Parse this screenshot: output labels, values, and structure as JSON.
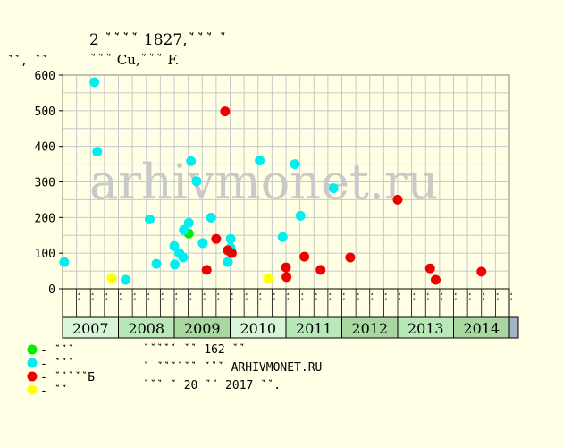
{
  "header": {
    "title_line1": "2 ꙿꙿꙿꙿ 1827,ꙿꙿꙿ ꙿ",
    "title_line2": "ꙿꙿꙿ Cu,ꙿꙿꙿ F."
  },
  "watermark": "arhivmonet.ru",
  "legend": [
    {
      "label": "- ꙿꙿꙿ",
      "color": "#00ee00"
    },
    {
      "label": "- ꙿꙿꙿ",
      "color": "#00eeee"
    },
    {
      "label": "- ꙿꙿꙿꙿꙿБ",
      "color": "#ee0000"
    },
    {
      "label": "- ꙿꙿ",
      "color": "#ffff00"
    }
  ],
  "notes": [
    "ꙿꙿꙿꙿꙿ ꙿꙿ 162 ꙿꙿ",
    "ꙿ ꙿꙿꙿꙿꙿꙿ ꙿꙿꙿ ARHIVMONET.RU",
    "ꙿꙿꙿ ꙿ 20 ꙿꙿ 2017 ꙿꙿ."
  ],
  "colors": {
    "background": "#ffffe6",
    "grid": "#c8c8c8",
    "year_bands": [
      "#d8f5d8",
      "#b8e8b8",
      "#a8d8a0",
      "#d8f5d8",
      "#b8e8b8",
      "#a8d8a0",
      "#b8e8b8",
      "#a8d8a0"
    ],
    "end_cell": "#a0b4c8"
  },
  "chart_data": {
    "type": "scatter",
    "ylabel": "ꙿꙿ, ꙿꙿ",
    "ylim": [
      0,
      600
    ],
    "yticks": [
      0,
      100,
      200,
      300,
      400,
      500,
      600
    ],
    "xlim": [
      2007.0,
      2015.0
    ],
    "grid": true,
    "legend_position": "bottom-left",
    "years": [
      "2007",
      "2008",
      "2009",
      "2010",
      "2011",
      "2012",
      "2013",
      "2014"
    ],
    "quarter_labels": [
      "ꙿꙿ",
      "ꙿꙿ",
      "ꙿꙿ",
      "ꙿꙿ",
      "ꙿꙿ",
      "ꙿꙿ",
      "ꙿꙿ",
      "ꙿꙿ",
      "ꙿꙿ",
      "ꙿꙿ",
      "ꙿꙿ",
      "ꙿꙿ",
      "ꙿꙿ",
      "ꙿꙿ",
      "ꙿꙿ",
      "ꙿꙿ",
      "ꙿꙿ",
      "ꙿꙿ",
      "ꙿꙿ",
      "ꙿꙿ",
      "ꙿꙿ",
      "ꙿꙿ",
      "ꙿꙿ",
      "ꙿꙿ",
      "ꙿꙿ",
      "ꙿꙿ",
      "ꙿꙿ",
      "ꙿꙿ",
      "ꙿꙿ",
      "ꙿꙿ",
      "ꙿꙿ",
      "ꙿꙿ"
    ],
    "series": [
      {
        "color": "#00ee00",
        "points": [
          {
            "x": 2009.26,
            "y": 155
          }
        ]
      },
      {
        "color": "#00eeee",
        "points": [
          {
            "x": 2007.03,
            "y": 75
          },
          {
            "x": 2007.57,
            "y": 580
          },
          {
            "x": 2007.62,
            "y": 385
          },
          {
            "x": 2008.13,
            "y": 25
          },
          {
            "x": 2008.56,
            "y": 195
          },
          {
            "x": 2008.68,
            "y": 70
          },
          {
            "x": 2009.0,
            "y": 120
          },
          {
            "x": 2009.01,
            "y": 68
          },
          {
            "x": 2009.09,
            "y": 100
          },
          {
            "x": 2009.16,
            "y": 88
          },
          {
            "x": 2009.17,
            "y": 165
          },
          {
            "x": 2009.26,
            "y": 185
          },
          {
            "x": 2009.3,
            "y": 358
          },
          {
            "x": 2009.4,
            "y": 302
          },
          {
            "x": 2009.51,
            "y": 128
          },
          {
            "x": 2009.66,
            "y": 200
          },
          {
            "x": 2009.96,
            "y": 75
          },
          {
            "x": 2010.01,
            "y": 140
          },
          {
            "x": 2010.01,
            "y": 115
          },
          {
            "x": 2010.53,
            "y": 360
          },
          {
            "x": 2010.94,
            "y": 145
          },
          {
            "x": 2011.16,
            "y": 350
          },
          {
            "x": 2011.26,
            "y": 205
          },
          {
            "x": 2011.85,
            "y": 282
          }
        ]
      },
      {
        "color": "#ee0000",
        "points": [
          {
            "x": 2009.58,
            "y": 53
          },
          {
            "x": 2009.75,
            "y": 140
          },
          {
            "x": 2009.91,
            "y": 498
          },
          {
            "x": 2009.96,
            "y": 108
          },
          {
            "x": 2010.03,
            "y": 100
          },
          {
            "x": 2011.0,
            "y": 60
          },
          {
            "x": 2011.01,
            "y": 33
          },
          {
            "x": 2011.33,
            "y": 90
          },
          {
            "x": 2011.62,
            "y": 53
          },
          {
            "x": 2012.15,
            "y": 88
          },
          {
            "x": 2013.0,
            "y": 250
          },
          {
            "x": 2013.58,
            "y": 57
          },
          {
            "x": 2013.68,
            "y": 25
          },
          {
            "x": 2014.5,
            "y": 48
          }
        ]
      },
      {
        "color": "#ffff00",
        "points": [
          {
            "x": 2007.88,
            "y": 30
          },
          {
            "x": 2010.68,
            "y": 28
          }
        ]
      }
    ]
  }
}
